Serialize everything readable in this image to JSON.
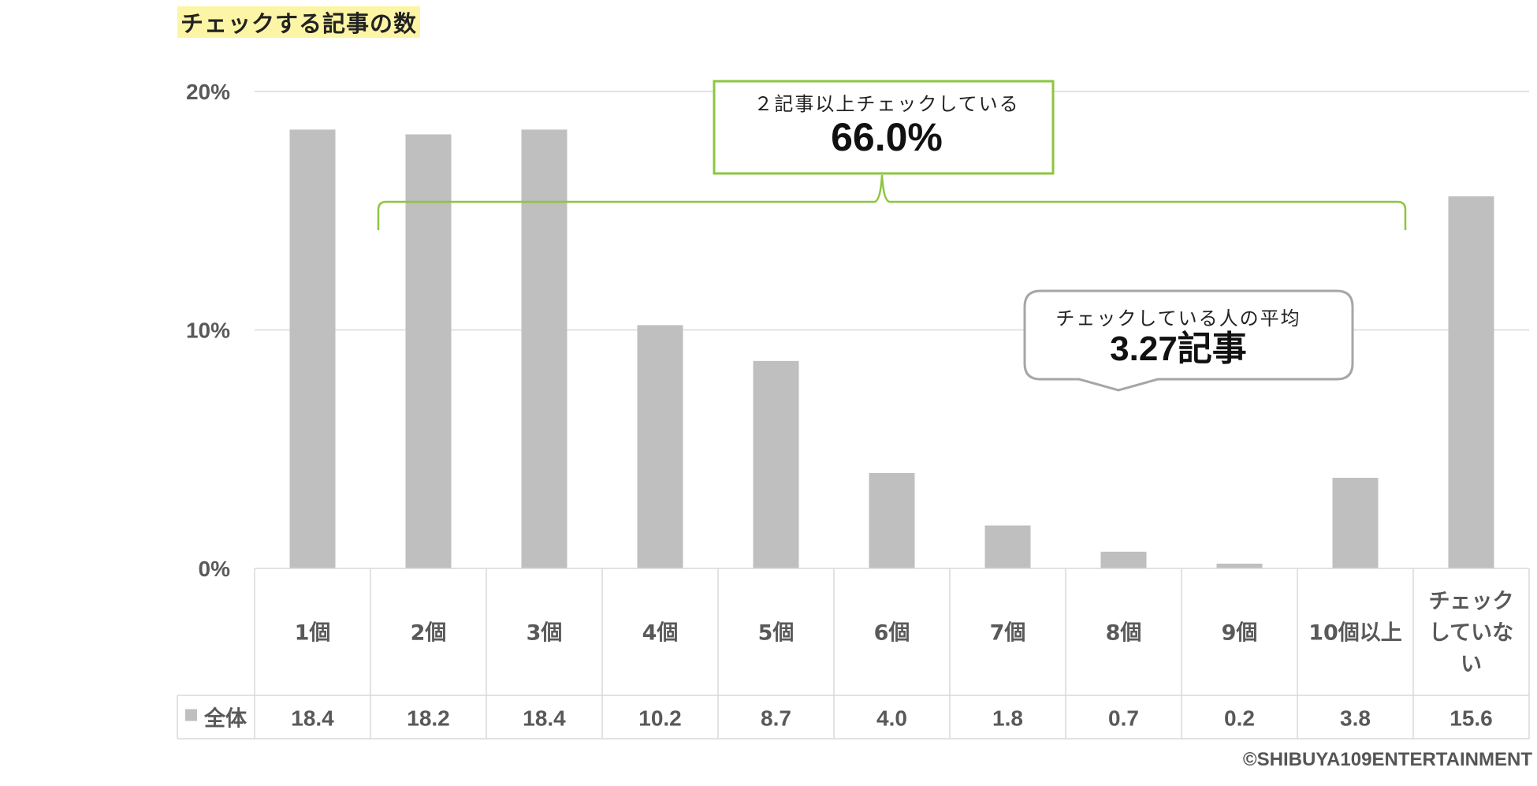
{
  "title": "チェックする記事の数",
  "credit": "©SHIBUYA109ENTERTAINMENT",
  "annotations": {
    "two_plus": {
      "label": "２記事以上チェックしている",
      "value": "66.0%"
    },
    "average": {
      "label": "チェックしている人の平均",
      "value": "3.27記事"
    }
  },
  "colors": {
    "bar": "#bfbfbf",
    "bracket": "#8cc63f",
    "grid": "#d9d9d9",
    "callout": "#a6a6a6",
    "title_highlight": "#fdf5a6"
  },
  "chart_data": {
    "type": "bar",
    "yticks": [
      "0%",
      "10%",
      "20%"
    ],
    "ylim": [
      0,
      20
    ],
    "grid": true,
    "categories": [
      "1個",
      "2個",
      "3個",
      "4個",
      "5個",
      "6個",
      "7個",
      "8個",
      "9個",
      "10個以上",
      "チェックしていない"
    ],
    "category_lines": [
      [
        "1個"
      ],
      [
        "2個"
      ],
      [
        "3個"
      ],
      [
        "4個"
      ],
      [
        "5個"
      ],
      [
        "6個"
      ],
      [
        "7個"
      ],
      [
        "8個"
      ],
      [
        "9個"
      ],
      [
        "10個以上"
      ],
      [
        "チェック",
        "していな",
        "い"
      ]
    ],
    "series": [
      {
        "name": "全体",
        "values": [
          18.4,
          18.2,
          18.4,
          10.2,
          8.7,
          4.0,
          1.8,
          0.7,
          0.2,
          3.8,
          15.6
        ],
        "labels": [
          "18.4",
          "18.2",
          "18.4",
          "10.2",
          "8.7",
          "4.0",
          "1.8",
          "0.7",
          "0.2",
          "3.8",
          "15.6"
        ]
      }
    ]
  }
}
